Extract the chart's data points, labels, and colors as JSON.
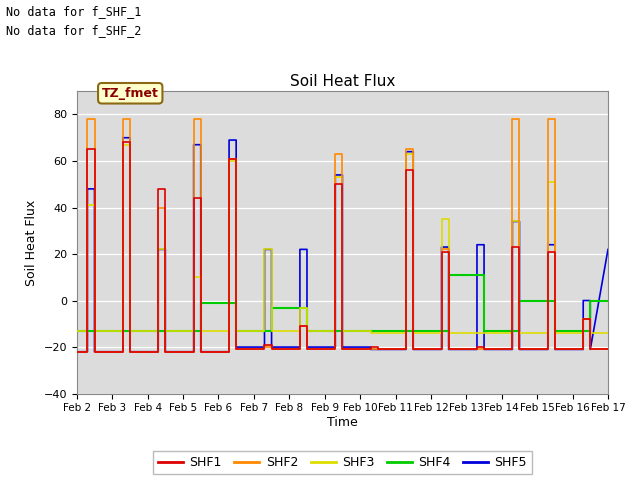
{
  "title": "Soil Heat Flux",
  "ylabel": "Soil Heat Flux",
  "xlabel": "Time",
  "ylim": [
    -40,
    90
  ],
  "yticks": [
    -40,
    -20,
    0,
    20,
    40,
    60,
    80
  ],
  "plot_bg": "#dcdcdc",
  "fig_bg": "#ffffff",
  "annotations": [
    "No data for f_SHF_1",
    "No data for f_SHF_2"
  ],
  "box_label": "TZ_fmet",
  "legend_entries": [
    "SHF1",
    "SHF2",
    "SHF3",
    "SHF4",
    "SHF5"
  ],
  "legend_colors": [
    "#dd0000",
    "#ff8800",
    "#dddd00",
    "#00cc00",
    "#0000dd"
  ],
  "colors": {
    "SHF1": "#dd0000",
    "SHF2": "#ff8800",
    "SHF3": "#dddd00",
    "SHF4": "#00cc00",
    "SHF5": "#0000dd"
  },
  "x_tick_labels": [
    "Feb 2",
    "Feb 3",
    "Feb 4",
    "Feb 5",
    "Feb 6",
    "Feb 7",
    "Feb 8",
    "Feb 9",
    "Feb 10",
    "Feb 11",
    "Feb 12",
    "Feb 13",
    "Feb 14",
    "Feb 15",
    "Feb 16",
    "Feb 17"
  ],
  "x_tick_positions": [
    1,
    2,
    3,
    4,
    5,
    6,
    7,
    8,
    9,
    10,
    11,
    12,
    13,
    14,
    15,
    16
  ],
  "series": {
    "SHF1": {
      "x": [
        1.0,
        1.3,
        1.3,
        1.5,
        1.5,
        2.0,
        2.0,
        2.3,
        2.3,
        2.5,
        2.5,
        3.0,
        3.0,
        3.3,
        3.3,
        3.5,
        3.5,
        4.0,
        4.0,
        4.3,
        4.3,
        4.5,
        4.5,
        5.0,
        5.0,
        5.3,
        5.3,
        5.5,
        5.5,
        6.0,
        6.0,
        6.3,
        6.3,
        6.5,
        6.5,
        7.0,
        7.0,
        7.3,
        7.3,
        7.5,
        7.5,
        8.0,
        8.0,
        8.3,
        8.3,
        8.5,
        8.5,
        9.0,
        9.0,
        9.3,
        9.3,
        9.5,
        9.5,
        10.0,
        10.0,
        10.3,
        10.3,
        10.5,
        10.5,
        11.0,
        11.0,
        11.3,
        11.3,
        11.5,
        11.5,
        12.0,
        12.0,
        12.3,
        12.3,
        12.5,
        12.5,
        13.0,
        13.0,
        13.3,
        13.3,
        13.5,
        13.5,
        14.0,
        14.0,
        14.3,
        14.3,
        14.5,
        14.5,
        15.0,
        15.0,
        15.3,
        15.3,
        15.5,
        15.5,
        16.0
      ],
      "y": [
        -22,
        -22,
        65,
        65,
        -22,
        -22,
        -22,
        -22,
        68,
        68,
        -22,
        -22,
        -22,
        -22,
        48,
        48,
        -22,
        -22,
        -22,
        -22,
        44,
        44,
        -22,
        -22,
        -22,
        -22,
        61,
        61,
        -21,
        -21,
        -21,
        -21,
        -19,
        -19,
        -21,
        -21,
        -21,
        -21,
        -11,
        -11,
        -21,
        -21,
        -21,
        -21,
        50,
        50,
        -21,
        -21,
        -21,
        -21,
        -20,
        -20,
        -21,
        -21,
        -21,
        -21,
        56,
        56,
        -21,
        -21,
        -21,
        -21,
        21,
        21,
        -21,
        -21,
        -21,
        -21,
        -20,
        -20,
        -21,
        -21,
        -21,
        -21,
        23,
        23,
        -21,
        -21,
        -21,
        -21,
        21,
        21,
        -21,
        -21,
        -21,
        -21,
        -8,
        -8,
        -21,
        -21
      ]
    },
    "SHF2": {
      "x": [
        1.0,
        1.3,
        1.3,
        1.5,
        1.5,
        2.0,
        2.0,
        2.3,
        2.3,
        2.5,
        2.5,
        3.0,
        3.0,
        3.3,
        3.3,
        3.5,
        3.5,
        4.0,
        4.0,
        4.3,
        4.3,
        4.5,
        4.5,
        5.0,
        5.0,
        5.3,
        5.3,
        5.5,
        5.5,
        6.0,
        6.0,
        6.3,
        6.3,
        6.5,
        6.5,
        7.0,
        7.0,
        7.3,
        7.3,
        7.5,
        7.5,
        8.0,
        8.0,
        8.3,
        8.3,
        8.5,
        8.5,
        9.0,
        9.0,
        9.3,
        9.3,
        9.5,
        9.5,
        10.0,
        10.0,
        10.3,
        10.3,
        10.5,
        10.5,
        11.0,
        11.0,
        11.3,
        11.3,
        11.5,
        11.5,
        12.0,
        12.0,
        12.3,
        12.3,
        12.5,
        12.5,
        13.0,
        13.0,
        13.3,
        13.3,
        13.5,
        13.5,
        14.0,
        14.0,
        14.3,
        14.3,
        14.5,
        14.5,
        15.0,
        15.0,
        15.3,
        15.3,
        15.5,
        15.5,
        16.0
      ],
      "y": [
        -22,
        -22,
        78,
        78,
        -22,
        -22,
        -22,
        -22,
        78,
        78,
        -22,
        -22,
        -22,
        -22,
        40,
        40,
        -22,
        -22,
        -22,
        -22,
        78,
        78,
        -22,
        -22,
        -22,
        -22,
        61,
        61,
        -21,
        -21,
        -21,
        -21,
        -20,
        -20,
        -21,
        -21,
        -21,
        -21,
        -11,
        -11,
        -21,
        -21,
        -21,
        -21,
        63,
        63,
        -21,
        -21,
        -21,
        -21,
        -21,
        -21,
        -21,
        -21,
        -21,
        -21,
        65,
        65,
        -21,
        -21,
        -21,
        -21,
        22,
        22,
        -21,
        -21,
        -21,
        -21,
        -21,
        -21,
        -21,
        -21,
        -21,
        -21,
        78,
        78,
        -21,
        -21,
        -21,
        -21,
        78,
        78,
        -21,
        -21,
        -21,
        -21,
        -8,
        -8,
        -21,
        -21
      ]
    },
    "SHF3": {
      "x": [
        1.0,
        1.3,
        1.3,
        1.5,
        1.5,
        2.0,
        2.0,
        2.3,
        2.3,
        2.5,
        2.5,
        3.0,
        3.0,
        3.3,
        3.3,
        3.5,
        3.5,
        4.0,
        4.0,
        4.3,
        4.3,
        4.5,
        4.5,
        5.0,
        5.0,
        5.3,
        5.3,
        5.5,
        5.5,
        6.0,
        6.0,
        6.3,
        6.3,
        6.5,
        6.5,
        7.0,
        7.0,
        7.3,
        7.3,
        7.5,
        7.5,
        8.0,
        8.0,
        8.3,
        8.3,
        8.5,
        8.5,
        9.0,
        9.0,
        9.3,
        9.3,
        9.5,
        9.5,
        10.0,
        10.0,
        10.3,
        10.3,
        10.5,
        10.5,
        11.0,
        11.0,
        11.3,
        11.3,
        11.5,
        11.5,
        12.0,
        12.0,
        12.3,
        12.3,
        12.5,
        12.5,
        13.0,
        13.0,
        13.3,
        13.3,
        13.5,
        13.5,
        14.0,
        14.0,
        14.3,
        14.3,
        14.5,
        14.5,
        15.0,
        15.0,
        15.3,
        15.3,
        15.5,
        15.5,
        16.0
      ],
      "y": [
        -13,
        -13,
        41,
        41,
        -13,
        -13,
        -13,
        -13,
        67,
        67,
        -13,
        -13,
        -13,
        -13,
        22,
        22,
        -13,
        -13,
        -13,
        -13,
        10,
        10,
        -13,
        -13,
        -13,
        -13,
        60,
        60,
        -13,
        -13,
        -13,
        -13,
        22,
        22,
        -13,
        -13,
        -13,
        -13,
        -3,
        -3,
        -13,
        -13,
        -13,
        -13,
        53,
        53,
        -13,
        -13,
        -13,
        -13,
        -14,
        -14,
        -14,
        -14,
        -14,
        -14,
        63,
        63,
        -14,
        -14,
        -14,
        -14,
        35,
        35,
        -14,
        -14,
        -14,
        -14,
        -14,
        -14,
        -14,
        -14,
        -14,
        -14,
        34,
        34,
        -14,
        -14,
        -14,
        -14,
        51,
        51,
        -14,
        -14,
        -14,
        -14,
        -8,
        -8,
        -14,
        -14
      ]
    },
    "SHF4": {
      "x": [
        1.0,
        1.5,
        1.5,
        2.5,
        2.5,
        3.5,
        3.5,
        4.5,
        4.5,
        5.5,
        5.5,
        6.5,
        6.5,
        7.5,
        7.5,
        8.5,
        8.5,
        9.5,
        9.5,
        10.5,
        10.5,
        11.5,
        11.5,
        12.5,
        12.5,
        13.5,
        13.5,
        14.5,
        14.5,
        15.5,
        15.5,
        16.0
      ],
      "y": [
        -13,
        -13,
        -13,
        -13,
        -13,
        -13,
        -13,
        -13,
        -1,
        -1,
        -13,
        -13,
        -3,
        -3,
        -13,
        -13,
        -13,
        -13,
        -13,
        -13,
        -13,
        -13,
        11,
        11,
        -13,
        -13,
        0,
        0,
        -13,
        -13,
        0,
        0
      ]
    },
    "SHF5": {
      "x": [
        1.0,
        1.3,
        1.3,
        1.5,
        1.5,
        2.0,
        2.0,
        2.3,
        2.3,
        2.5,
        2.5,
        3.0,
        3.0,
        3.3,
        3.3,
        3.5,
        3.5,
        4.0,
        4.0,
        4.3,
        4.3,
        4.5,
        4.5,
        5.0,
        5.0,
        5.3,
        5.3,
        5.5,
        5.5,
        6.0,
        6.0,
        6.3,
        6.3,
        6.5,
        6.5,
        7.0,
        7.0,
        7.3,
        7.3,
        7.5,
        7.5,
        8.0,
        8.0,
        8.3,
        8.3,
        8.5,
        8.5,
        9.0,
        9.0,
        9.3,
        9.3,
        9.5,
        9.5,
        10.0,
        10.0,
        10.3,
        10.3,
        10.5,
        10.5,
        11.0,
        11.0,
        11.3,
        11.3,
        11.5,
        11.5,
        12.0,
        12.0,
        12.3,
        12.3,
        12.5,
        12.5,
        13.0,
        13.0,
        13.3,
        13.3,
        13.5,
        13.5,
        14.0,
        14.0,
        14.3,
        14.3,
        14.5,
        14.5,
        15.0,
        15.0,
        15.3,
        15.3,
        15.5,
        15.5,
        16.0
      ],
      "y": [
        -22,
        -22,
        48,
        48,
        -22,
        -22,
        -22,
        -22,
        70,
        70,
        -22,
        -22,
        -22,
        -22,
        22,
        22,
        -22,
        -22,
        -22,
        -22,
        67,
        67,
        -22,
        -22,
        -22,
        -22,
        69,
        69,
        -20,
        -20,
        -20,
        -20,
        22,
        22,
        -20,
        -20,
        -20,
        -20,
        22,
        22,
        -20,
        -20,
        -20,
        -20,
        54,
        54,
        -20,
        -20,
        -20,
        -20,
        -21,
        -21,
        -21,
        -21,
        -21,
        -21,
        64,
        64,
        -21,
        -21,
        -21,
        -21,
        23,
        23,
        -21,
        -21,
        -21,
        -21,
        24,
        24,
        -21,
        -21,
        -21,
        -21,
        34,
        34,
        -21,
        -21,
        -21,
        -21,
        24,
        24,
        -21,
        -21,
        -21,
        -21,
        0,
        0,
        -21,
        22
      ]
    }
  }
}
